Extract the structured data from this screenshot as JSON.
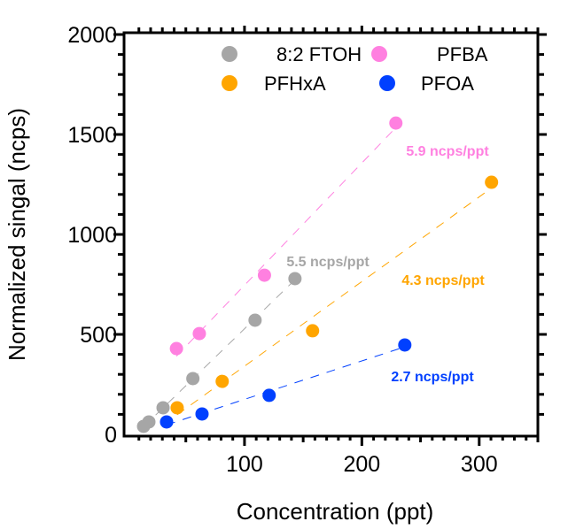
{
  "chart_data": {
    "type": "scatter",
    "title": "",
    "xlabel": "Concentration (ppt)",
    "ylabel": "Normalized singal (ncps)",
    "xlim": [
      0,
      350
    ],
    "ylim": [
      0,
      2000
    ],
    "x_ticks": [
      100,
      200,
      300
    ],
    "y_ticks": [
      0,
      500,
      1000,
      1500,
      2000
    ],
    "grid": false,
    "legend_position": "top",
    "series": [
      {
        "name": "8:2 FTOH",
        "color": "#a6a6a6",
        "x": [
          14,
          18.5,
          30.6,
          56,
          109,
          143
        ],
        "y": [
          40,
          62,
          133,
          279,
          571,
          779
        ],
        "slope_label": "5.5 ncps/ppt"
      },
      {
        "name": "PFBA",
        "color": "#ff80e0",
        "x": [
          42,
          61.5,
          117,
          229
        ],
        "y": [
          429,
          504,
          796,
          1557
        ],
        "slope_label": "5.9 ncps/ppt"
      },
      {
        "name": "PFHxA",
        "color": "#ffa500",
        "x": [
          42.6,
          81,
          158,
          310.5
        ],
        "y": [
          133,
          265,
          518,
          1261
        ],
        "slope_label": "4.3 ncps/ppt"
      },
      {
        "name": "PFOA",
        "color": "#0040ff",
        "x": [
          33.6,
          63.8,
          121,
          236.6
        ],
        "y": [
          62,
          102,
          195,
          447
        ],
        "slope_label": "2.7 ncps/ppt"
      }
    ]
  }
}
